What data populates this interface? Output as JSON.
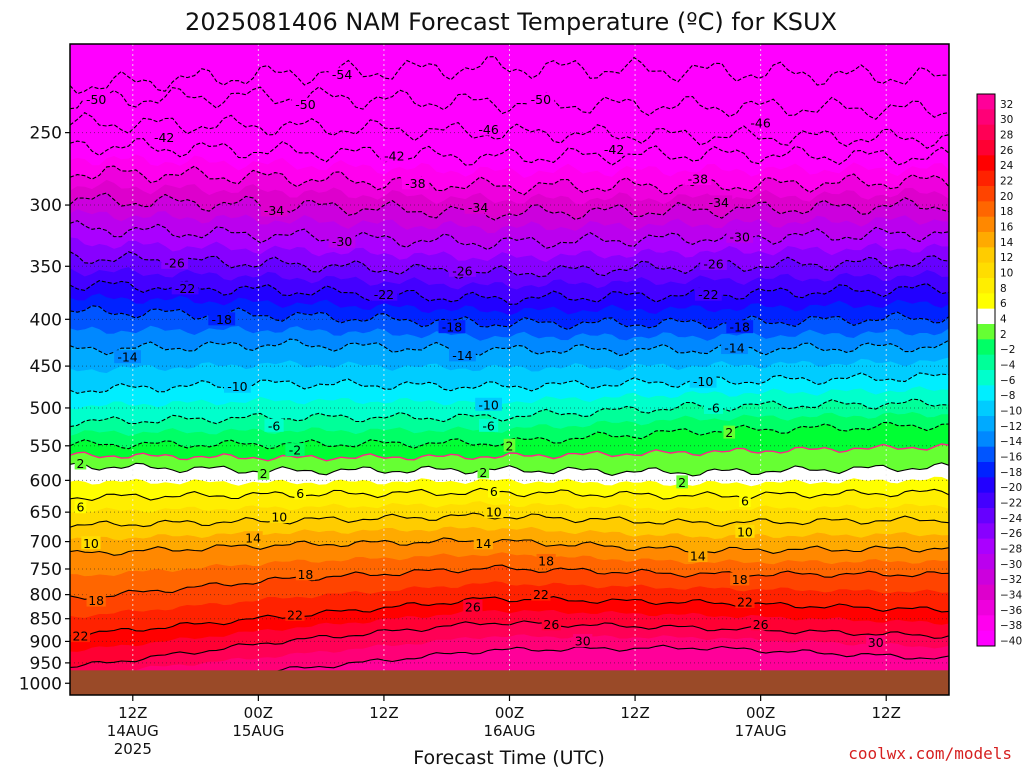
{
  "title": "2025081406 NAM Forecast Temperature (ºC) for KSUX",
  "credit": "coolwx.com/models",
  "colors": {
    "ground": "#9a4a28",
    "band_colors": [
      "#ff00ff",
      "#ff00ee",
      "#ee00dd",
      "#dd00cc",
      "#cc00dd",
      "#bb00ee",
      "#aa00ff",
      "#8800ff",
      "#6600ff",
      "#4400ff",
      "#2200ff",
      "#0022ff",
      "#0055ff",
      "#0088ff",
      "#00aaff",
      "#00ccff",
      "#00eeff",
      "#00ffcc",
      "#00ff99",
      "#00ff66",
      "#00ff33",
      "#66ff33",
      "#ffffff",
      "#ffff00",
      "#ffee00",
      "#ffdd00",
      "#ffcc00",
      "#ffaa00",
      "#ff8800",
      "#ff6600",
      "#ff4400",
      "#ff2200",
      "#ff0000",
      "#ff0033",
      "#ff0055",
      "#ff0077",
      "#ff0099",
      "#ff00bb"
    ],
    "zero_line": "#ff2288"
  },
  "chart_data": {
    "type": "heatmap",
    "title": "2025081406 NAM Forecast Temperature (ºC) for KSUX",
    "xlabel": "Forecast Time (UTC)",
    "ylabel": "",
    "x_ticks": [
      {
        "hour": 6,
        "label": "12Z",
        "sub1": "14AUG",
        "sub2": "2025"
      },
      {
        "hour": 18,
        "label": "00Z",
        "sub1": "15AUG",
        "sub2": ""
      },
      {
        "hour": 30,
        "label": "12Z",
        "sub1": "",
        "sub2": ""
      },
      {
        "hour": 42,
        "label": "00Z",
        "sub1": "16AUG",
        "sub2": ""
      },
      {
        "hour": 54,
        "label": "12Z",
        "sub1": "",
        "sub2": ""
      },
      {
        "hour": 66,
        "label": "00Z",
        "sub1": "17AUG",
        "sub2": ""
      },
      {
        "hour": 78,
        "label": "12Z",
        "sub1": "",
        "sub2": ""
      }
    ],
    "xlim": [
      0,
      84
    ],
    "y_ticks": [
      250,
      300,
      350,
      400,
      450,
      500,
      550,
      600,
      650,
      700,
      750,
      800,
      850,
      900,
      950,
      1000
    ],
    "ylim": [
      200,
      1030
    ],
    "y_scale": "log-pressure",
    "ground_level_hpa": 968,
    "colorbar": {
      "labels": [
        "32",
        "30",
        "28",
        "26",
        "24",
        "22",
        "20",
        "18",
        "16",
        "14",
        "12",
        "10",
        "8",
        "6",
        "4",
        "2",
        "−2",
        "−4",
        "−6",
        "−8",
        "−10",
        "−12",
        "−14",
        "−16",
        "−18",
        "−20",
        "−22",
        "−24",
        "−26",
        "−28",
        "−30",
        "−32",
        "−34",
        "−36",
        "−38",
        "−40"
      ]
    },
    "contour_levels_labeled": [
      -54,
      -50,
      -46,
      -42,
      -38,
      -34,
      -30,
      -26,
      -22,
      -18,
      -14,
      -10,
      -6,
      -2,
      2,
      6,
      10,
      14,
      18,
      22,
      26,
      30
    ],
    "isotherms": [
      {
        "value": -54,
        "profile": [
          [
            0,
            222
          ],
          [
            20,
            216
          ],
          [
            40,
            212
          ],
          [
            60,
            214
          ],
          [
            84,
            218
          ]
        ]
      },
      {
        "value": -50,
        "profile": [
          [
            0,
            230
          ],
          [
            20,
            228
          ],
          [
            40,
            232
          ],
          [
            60,
            234
          ],
          [
            84,
            236
          ]
        ]
      },
      {
        "value": -46,
        "profile": [
          [
            0,
            244
          ],
          [
            20,
            246
          ],
          [
            40,
            250
          ],
          [
            60,
            252
          ],
          [
            84,
            254
          ]
        ]
      },
      {
        "value": -42,
        "profile": [
          [
            0,
            258
          ],
          [
            20,
            262
          ],
          [
            40,
            266
          ],
          [
            60,
            264
          ],
          [
            84,
            266
          ]
        ]
      },
      {
        "value": -38,
        "profile": [
          [
            0,
            276
          ],
          [
            20,
            280
          ],
          [
            40,
            286
          ],
          [
            60,
            286
          ],
          [
            84,
            282
          ]
        ]
      },
      {
        "value": -34,
        "profile": [
          [
            0,
            296
          ],
          [
            20,
            300
          ],
          [
            40,
            306
          ],
          [
            60,
            304
          ],
          [
            84,
            300
          ]
        ]
      },
      {
        "value": -30,
        "profile": [
          [
            0,
            318
          ],
          [
            20,
            324
          ],
          [
            40,
            330
          ],
          [
            60,
            326
          ],
          [
            84,
            322
          ]
        ]
      },
      {
        "value": -26,
        "profile": [
          [
            0,
            342
          ],
          [
            20,
            348
          ],
          [
            40,
            356
          ],
          [
            60,
            350
          ],
          [
            84,
            346
          ]
        ]
      },
      {
        "value": -22,
        "profile": [
          [
            0,
            366
          ],
          [
            20,
            372
          ],
          [
            40,
            380
          ],
          [
            60,
            376
          ],
          [
            84,
            370
          ]
        ]
      },
      {
        "value": -18,
        "profile": [
          [
            0,
            392
          ],
          [
            20,
            396
          ],
          [
            40,
            404
          ],
          [
            60,
            404
          ],
          [
            84,
            398
          ]
        ]
      },
      {
        "value": -14,
        "profile": [
          [
            0,
            432
          ],
          [
            20,
            426
          ],
          [
            40,
            432
          ],
          [
            60,
            432
          ],
          [
            84,
            428
          ]
        ]
      },
      {
        "value": -10,
        "profile": [
          [
            0,
            478
          ],
          [
            20,
            470
          ],
          [
            40,
            474
          ],
          [
            60,
            468
          ],
          [
            84,
            462
          ]
        ]
      },
      {
        "value": -6,
        "profile": [
          [
            0,
            518
          ],
          [
            20,
            512
          ],
          [
            40,
            512
          ],
          [
            60,
            498
          ],
          [
            84,
            494
          ]
        ]
      },
      {
        "value": -2,
        "profile": [
          [
            0,
            548
          ],
          [
            20,
            548
          ],
          [
            40,
            546
          ],
          [
            60,
            530
          ],
          [
            84,
            522
          ]
        ]
      },
      {
        "value": 2,
        "profile": [
          [
            0,
            578
          ],
          [
            20,
            586
          ],
          [
            40,
            584
          ],
          [
            60,
            588
          ],
          [
            84,
            580
          ]
        ]
      },
      {
        "value": 6,
        "profile": [
          [
            0,
            626
          ],
          [
            20,
            622
          ],
          [
            40,
            618
          ],
          [
            60,
            624
          ],
          [
            84,
            618
          ]
        ]
      },
      {
        "value": 10,
        "profile": [
          [
            0,
            672
          ],
          [
            20,
            664
          ],
          [
            40,
            656
          ],
          [
            60,
            668
          ],
          [
            84,
            662
          ]
        ]
      },
      {
        "value": 14,
        "profile": [
          [
            0,
            722
          ],
          [
            20,
            706
          ],
          [
            40,
            698
          ],
          [
            60,
            716
          ],
          [
            84,
            712
          ]
        ]
      },
      {
        "value": 18,
        "profile": [
          [
            0,
            808
          ],
          [
            20,
            770
          ],
          [
            40,
            748
          ],
          [
            60,
            760
          ],
          [
            84,
            760
          ]
        ]
      },
      {
        "value": 22,
        "profile": [
          [
            0,
            886
          ],
          [
            20,
            846
          ],
          [
            40,
            808
          ],
          [
            60,
            816
          ],
          [
            84,
            832
          ]
        ]
      },
      {
        "value": 26,
        "profile": [
          [
            0,
            960
          ],
          [
            20,
            900
          ],
          [
            40,
            858
          ],
          [
            60,
            870
          ],
          [
            84,
            888
          ]
        ]
      },
      {
        "value": 30,
        "profile": [
          [
            0,
            1000
          ],
          [
            20,
            968
          ],
          [
            40,
            920
          ],
          [
            60,
            914
          ],
          [
            84,
            940
          ]
        ]
      }
    ],
    "contour_labels": [
      {
        "text": "-54",
        "hour": 26,
        "hpa": 216
      },
      {
        "text": "-50",
        "hour": 2.5,
        "hpa": 230
      },
      {
        "text": "-50",
        "hour": 22.5,
        "hpa": 233
      },
      {
        "text": "-50",
        "hour": 45,
        "hpa": 230
      },
      {
        "text": "-46",
        "hour": 40,
        "hpa": 248
      },
      {
        "text": "-46",
        "hour": 66,
        "hpa": 244
      },
      {
        "text": "-42",
        "hour": 9,
        "hpa": 253
      },
      {
        "text": "-42",
        "hour": 31,
        "hpa": 265
      },
      {
        "text": "-42",
        "hour": 52,
        "hpa": 261
      },
      {
        "text": "-38",
        "hour": 33,
        "hpa": 284
      },
      {
        "text": "-38",
        "hour": 60,
        "hpa": 281
      },
      {
        "text": "-34",
        "hour": 19.5,
        "hpa": 304
      },
      {
        "text": "-34",
        "hour": 39,
        "hpa": 302
      },
      {
        "text": "-34",
        "hour": 62,
        "hpa": 298
      },
      {
        "text": "-30",
        "hour": 26,
        "hpa": 329
      },
      {
        "text": "-30",
        "hour": 64,
        "hpa": 325
      },
      {
        "text": "-26",
        "hour": 10,
        "hpa": 347
      },
      {
        "text": "-26",
        "hour": 37.5,
        "hpa": 354
      },
      {
        "text": "-26",
        "hour": 61.5,
        "hpa": 348
      },
      {
        "text": "-22",
        "hour": 11,
        "hpa": 370
      },
      {
        "text": "-22",
        "hour": 30,
        "hpa": 376
      },
      {
        "text": "-22",
        "hour": 61,
        "hpa": 376
      },
      {
        "text": "-18",
        "hour": 14.5,
        "hpa": 400
      },
      {
        "text": "-18",
        "hour": 36.5,
        "hpa": 408
      },
      {
        "text": "-18",
        "hour": 64,
        "hpa": 408
      },
      {
        "text": "-14",
        "hour": 5.5,
        "hpa": 440
      },
      {
        "text": "-14",
        "hour": 37.5,
        "hpa": 438
      },
      {
        "text": "-14",
        "hour": 63.5,
        "hpa": 430
      },
      {
        "text": "-10",
        "hour": 16,
        "hpa": 474
      },
      {
        "text": "-10",
        "hour": 40,
        "hpa": 496
      },
      {
        "text": "-10",
        "hour": 60.5,
        "hpa": 468
      },
      {
        "text": "-6",
        "hour": 19.5,
        "hpa": 523
      },
      {
        "text": "-6",
        "hour": 40,
        "hpa": 523
      },
      {
        "text": "-6",
        "hour": 61.5,
        "hpa": 500
      },
      {
        "text": "-2",
        "hour": 21.5,
        "hpa": 556
      },
      {
        "text": "2",
        "hour": 1,
        "hpa": 575
      },
      {
        "text": "2",
        "hour": 42,
        "hpa": 550
      },
      {
        "text": "2",
        "hour": 63,
        "hpa": 532
      },
      {
        "text": "2",
        "hour": 18.5,
        "hpa": 590
      },
      {
        "text": "2",
        "hour": 39.5,
        "hpa": 588
      },
      {
        "text": "2",
        "hour": 58.5,
        "hpa": 603
      },
      {
        "text": "6",
        "hour": 1,
        "hpa": 642
      },
      {
        "text": "6",
        "hour": 22,
        "hpa": 620
      },
      {
        "text": "6",
        "hour": 40.5,
        "hpa": 617
      },
      {
        "text": "6",
        "hour": 64.5,
        "hpa": 632
      },
      {
        "text": "10",
        "hour": 2,
        "hpa": 703
      },
      {
        "text": "10",
        "hour": 20,
        "hpa": 658
      },
      {
        "text": "10",
        "hour": 40.5,
        "hpa": 650
      },
      {
        "text": "10",
        "hour": 64.5,
        "hpa": 683
      },
      {
        "text": "14",
        "hour": 17.5,
        "hpa": 694
      },
      {
        "text": "14",
        "hour": 39.5,
        "hpa": 703
      },
      {
        "text": "14",
        "hour": 60,
        "hpa": 726
      },
      {
        "text": "18",
        "hour": 2.5,
        "hpa": 812
      },
      {
        "text": "18",
        "hour": 22.5,
        "hpa": 760
      },
      {
        "text": "18",
        "hour": 45.5,
        "hpa": 735
      },
      {
        "text": "18",
        "hour": 64,
        "hpa": 770
      },
      {
        "text": "22",
        "hour": 1,
        "hpa": 888
      },
      {
        "text": "22",
        "hour": 21.5,
        "hpa": 842
      },
      {
        "text": "22",
        "hour": 45,
        "hpa": 800
      },
      {
        "text": "22",
        "hour": 64.5,
        "hpa": 815
      },
      {
        "text": "26",
        "hour": 38.5,
        "hpa": 825
      },
      {
        "text": "26",
        "hour": 46,
        "hpa": 862
      },
      {
        "text": "26",
        "hour": 66,
        "hpa": 862
      },
      {
        "text": "30",
        "hour": 49,
        "hpa": 899
      },
      {
        "text": "30",
        "hour": 77,
        "hpa": 903
      }
    ]
  }
}
